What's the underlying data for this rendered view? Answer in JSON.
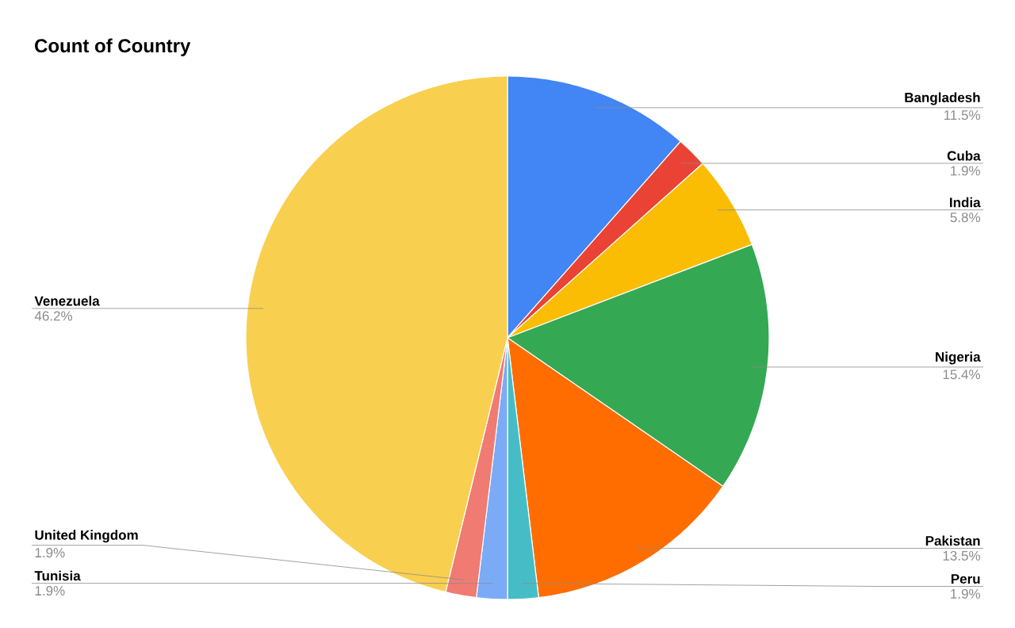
{
  "chart_data": {
    "type": "pie",
    "title": "Count of Country",
    "categories": [
      "Bangladesh",
      "Cuba",
      "India",
      "Nigeria",
      "Pakistan",
      "Peru",
      "Tunisia",
      "United Kingdom",
      "Venezuela"
    ],
    "values": [
      11.5,
      1.9,
      5.8,
      15.4,
      13.5,
      1.9,
      1.9,
      1.9,
      46.2
    ],
    "value_labels": [
      "11.5%",
      "1.9%",
      "5.8%",
      "15.4%",
      "13.5%",
      "1.9%",
      "1.9%",
      "1.9%",
      "46.2%"
    ],
    "colors": [
      "#4285f4",
      "#ea4335",
      "#fbbc04",
      "#34a853",
      "#ff6d01",
      "#46bdc6",
      "#7baaf7",
      "#f07b72",
      "#f9cf4f"
    ]
  }
}
